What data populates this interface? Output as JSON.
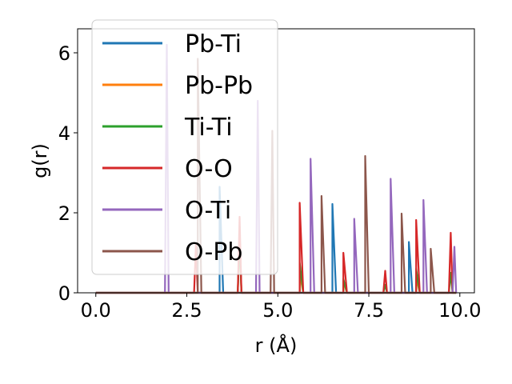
{
  "chart_data": {
    "type": "line",
    "title": "",
    "xlabel": "r (Å)",
    "ylabel": "g(r)",
    "xlim": [
      -0.5,
      10.4
    ],
    "ylim": [
      0,
      6.6
    ],
    "xticks": [
      0.0,
      2.5,
      5.0,
      7.5,
      10.0
    ],
    "xtick_labels": [
      "0.0",
      "2.5",
      "5.0",
      "7.5",
      "10.0"
    ],
    "yticks": [
      0,
      2,
      4,
      6
    ],
    "ytick_labels": [
      "0",
      "2",
      "4",
      "6"
    ],
    "legend_position": "top-left",
    "series": [
      {
        "name": "Pb-Ti",
        "color": "#1f77b4",
        "peaks": [
          [
            3.4,
            2.65
          ],
          [
            6.5,
            2.22
          ],
          [
            8.6,
            1.27
          ]
        ]
      },
      {
        "name": "Pb-Pb",
        "color": "#ff7f0e",
        "peaks": [
          [
            3.95,
            1.5
          ],
          [
            5.6,
            0.5
          ],
          [
            6.8,
            0.3
          ],
          [
            8.8,
            0.4
          ]
        ]
      },
      {
        "name": "Ti-Ti",
        "color": "#2ca02c",
        "peaks": [
          [
            3.95,
            1.3
          ],
          [
            5.6,
            0.75
          ],
          [
            6.8,
            0.35
          ],
          [
            7.95,
            0.2
          ],
          [
            8.8,
            0.6
          ],
          [
            9.75,
            0.5
          ]
        ]
      },
      {
        "name": "O-O",
        "color": "#d62728",
        "peaks": [
          [
            2.75,
            1.2
          ],
          [
            3.95,
            1.9
          ],
          [
            5.6,
            2.25
          ],
          [
            6.8,
            1.0
          ],
          [
            7.95,
            0.55
          ],
          [
            8.8,
            1.82
          ],
          [
            9.75,
            1.5
          ]
        ]
      },
      {
        "name": "O-Ti",
        "color": "#9467bd",
        "peaks": [
          [
            1.95,
            6.2
          ],
          [
            4.45,
            4.8
          ],
          [
            5.9,
            3.35
          ],
          [
            7.1,
            1.85
          ],
          [
            8.1,
            2.85
          ],
          [
            9.0,
            2.32
          ],
          [
            9.85,
            1.15
          ]
        ]
      },
      {
        "name": "O-Pb",
        "color": "#8c564b",
        "peaks": [
          [
            2.8,
            5.85
          ],
          [
            4.85,
            4.05
          ],
          [
            6.2,
            2.42
          ],
          [
            7.4,
            3.42
          ],
          [
            8.4,
            1.98
          ],
          [
            9.2,
            1.1
          ]
        ]
      }
    ]
  }
}
